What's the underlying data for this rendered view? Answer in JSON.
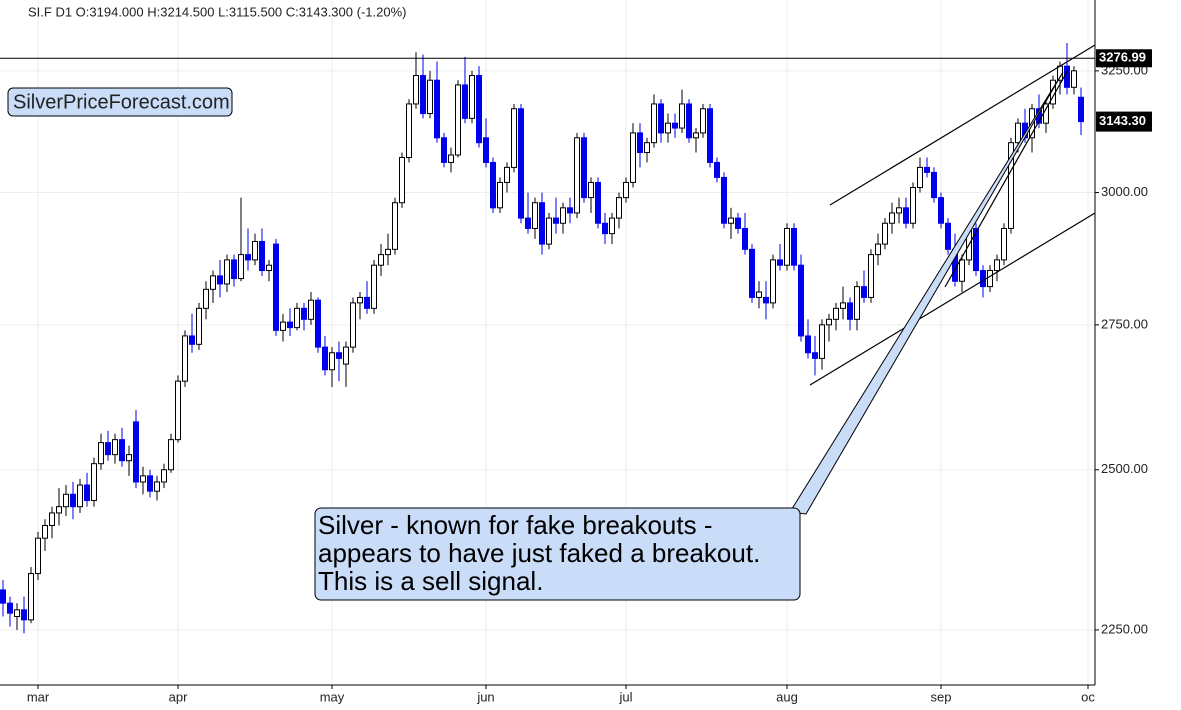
{
  "chart_data": {
    "type": "candlestick",
    "title": "SI.F  D1  O:3194.000  H:3214.500  L:3115.500  C:3143.300  (-1.20%)",
    "watermark": "SilverPriceForecast.com",
    "annotation": [
      "Silver - known for fake breakouts -",
      "appears to have just faked a breakout.",
      "This is a sell signal."
    ],
    "log_scale": true,
    "grid": true,
    "up_color": "#ffffff",
    "down_color": "#0000ee",
    "xlim": [
      -0.43,
      156
    ],
    "xticks": [
      {
        "value": 5,
        "label": "mar"
      },
      {
        "value": 25,
        "label": "apr"
      },
      {
        "value": 47,
        "label": "may"
      },
      {
        "value": 69,
        "label": "jun"
      },
      {
        "value": 89,
        "label": "jul"
      },
      {
        "value": 112,
        "label": "aug"
      },
      {
        "value": 134,
        "label": "sep"
      },
      {
        "value": 155,
        "label": "oc"
      }
    ],
    "ylim": [
      2170,
      3405
    ],
    "yticks": [
      {
        "value": 2250,
        "label": "2250.00"
      },
      {
        "value": 2500,
        "label": "2500.00"
      },
      {
        "value": 2750,
        "label": "2750.00"
      },
      {
        "value": 3000,
        "label": "3000.00"
      },
      {
        "value": 3250,
        "label": "3250.00"
      }
    ],
    "price_line": {
      "value": 3276.99,
      "label": "3276.99"
    },
    "last_price": {
      "value": 3143.3,
      "label": "3143.30"
    },
    "values": [
      [
        2310,
        2325,
        2270,
        2290
      ],
      [
        2290,
        2300,
        2255,
        2275
      ],
      [
        2270,
        2290,
        2250,
        2280
      ],
      [
        2280,
        2300,
        2245,
        2265
      ],
      [
        2265,
        2345,
        2260,
        2335
      ],
      [
        2335,
        2400,
        2325,
        2390
      ],
      [
        2390,
        2420,
        2370,
        2410
      ],
      [
        2410,
        2440,
        2390,
        2430
      ],
      [
        2430,
        2470,
        2410,
        2440
      ],
      [
        2440,
        2475,
        2425,
        2460
      ],
      [
        2460,
        2480,
        2420,
        2440
      ],
      [
        2440,
        2485,
        2430,
        2475
      ],
      [
        2475,
        2495,
        2440,
        2450
      ],
      [
        2450,
        2520,
        2440,
        2510
      ],
      [
        2510,
        2560,
        2500,
        2545
      ],
      [
        2545,
        2565,
        2515,
        2525
      ],
      [
        2525,
        2560,
        2510,
        2550
      ],
      [
        2550,
        2570,
        2505,
        2515
      ],
      [
        2515,
        2540,
        2490,
        2525
      ],
      [
        2580,
        2600,
        2470,
        2480
      ],
      [
        2480,
        2505,
        2460,
        2490
      ],
      [
        2490,
        2500,
        2455,
        2465
      ],
      [
        2465,
        2490,
        2450,
        2480
      ],
      [
        2480,
        2510,
        2470,
        2500
      ],
      [
        2500,
        2560,
        2495,
        2550
      ],
      [
        2550,
        2660,
        2545,
        2650
      ],
      [
        2650,
        2740,
        2640,
        2730
      ],
      [
        2730,
        2770,
        2700,
        2715
      ],
      [
        2715,
        2790,
        2705,
        2780
      ],
      [
        2780,
        2830,
        2760,
        2815
      ],
      [
        2815,
        2850,
        2790,
        2840
      ],
      [
        2840,
        2870,
        2800,
        2825
      ],
      [
        2825,
        2880,
        2810,
        2870
      ],
      [
        2870,
        2880,
        2820,
        2835
      ],
      [
        2835,
        2990,
        2830,
        2880
      ],
      [
        2880,
        2930,
        2850,
        2870
      ],
      [
        2870,
        2920,
        2860,
        2905
      ],
      [
        2905,
        2930,
        2840,
        2850
      ],
      [
        2850,
        2870,
        2830,
        2860
      ],
      [
        2900,
        2910,
        2730,
        2740
      ],
      [
        2740,
        2770,
        2720,
        2755
      ],
      [
        2755,
        2780,
        2730,
        2745
      ],
      [
        2745,
        2790,
        2740,
        2780
      ],
      [
        2780,
        2790,
        2740,
        2760
      ],
      [
        2760,
        2810,
        2750,
        2795
      ],
      [
        2795,
        2800,
        2700,
        2710
      ],
      [
        2710,
        2730,
        2660,
        2670
      ],
      [
        2670,
        2710,
        2640,
        2700
      ],
      [
        2700,
        2720,
        2650,
        2690
      ],
      [
        2680,
        2720,
        2640,
        2710
      ],
      [
        2710,
        2800,
        2700,
        2790
      ],
      [
        2790,
        2810,
        2760,
        2800
      ],
      [
        2800,
        2830,
        2770,
        2780
      ],
      [
        2780,
        2870,
        2770,
        2860
      ],
      [
        2860,
        2900,
        2840,
        2880
      ],
      [
        2880,
        2920,
        2860,
        2890
      ],
      [
        2890,
        2990,
        2880,
        2980
      ],
      [
        2980,
        3080,
        2970,
        3070
      ],
      [
        3070,
        3190,
        3060,
        3180
      ],
      [
        3180,
        3290,
        3170,
        3240
      ],
      [
        3240,
        3285,
        3150,
        3160
      ],
      [
        3160,
        3250,
        3150,
        3230
      ],
      [
        3230,
        3270,
        3100,
        3110
      ],
      [
        3110,
        3120,
        3050,
        3060
      ],
      [
        3060,
        3090,
        3040,
        3075
      ],
      [
        3075,
        3230,
        3070,
        3220
      ],
      [
        3220,
        3280,
        3140,
        3150
      ],
      [
        3150,
        3250,
        3140,
        3240
      ],
      [
        3240,
        3260,
        3090,
        3100
      ],
      [
        3110,
        3150,
        3050,
        3060
      ],
      [
        3060,
        3070,
        2960,
        2970
      ],
      [
        2970,
        3030,
        2960,
        3020
      ],
      [
        3020,
        3060,
        3000,
        3050
      ],
      [
        3050,
        3180,
        3040,
        3170
      ],
      [
        3170,
        3180,
        2940,
        2950
      ],
      [
        2950,
        3000,
        2920,
        2930
      ],
      [
        2930,
        2990,
        2910,
        2980
      ],
      [
        2980,
        3000,
        2880,
        2900
      ],
      [
        2900,
        2960,
        2890,
        2950
      ],
      [
        2950,
        2990,
        2920,
        2940
      ],
      [
        2940,
        2980,
        2920,
        2970
      ],
      [
        2970,
        2990,
        2940,
        2960
      ],
      [
        2960,
        3120,
        2950,
        3110
      ],
      [
        3110,
        3120,
        2980,
        2990
      ],
      [
        2990,
        3030,
        2960,
        3020
      ],
      [
        3020,
        3030,
        2930,
        2940
      ],
      [
        2940,
        2960,
        2900,
        2920
      ],
      [
        2920,
        2960,
        2900,
        2950
      ],
      [
        2950,
        3000,
        2930,
        2990
      ],
      [
        2990,
        3030,
        2980,
        3020
      ],
      [
        3020,
        3140,
        3010,
        3120
      ],
      [
        3120,
        3140,
        3050,
        3080
      ],
      [
        3080,
        3110,
        3060,
        3100
      ],
      [
        3100,
        3200,
        3090,
        3180
      ],
      [
        3180,
        3190,
        3100,
        3120
      ],
      [
        3120,
        3160,
        3100,
        3140
      ],
      [
        3140,
        3160,
        3110,
        3130
      ],
      [
        3130,
        3210,
        3120,
        3180
      ],
      [
        3180,
        3190,
        3100,
        3110
      ],
      [
        3110,
        3130,
        3080,
        3120
      ],
      [
        3120,
        3180,
        3110,
        3170
      ],
      [
        3170,
        3180,
        3050,
        3060
      ],
      [
        3060,
        3070,
        3020,
        3030
      ],
      [
        3030,
        3040,
        2930,
        2940
      ],
      [
        2940,
        2970,
        2910,
        2950
      ],
      [
        2950,
        2960,
        2920,
        2930
      ],
      [
        2930,
        2960,
        2880,
        2890
      ],
      [
        2890,
        2900,
        2790,
        2800
      ],
      [
        2800,
        2830,
        2780,
        2810
      ],
      [
        2800,
        2830,
        2760,
        2790
      ],
      [
        2790,
        2880,
        2780,
        2870
      ],
      [
        2870,
        2900,
        2850,
        2860
      ],
      [
        2860,
        2940,
        2850,
        2930
      ],
      [
        2930,
        2940,
        2850,
        2860
      ],
      [
        2860,
        2880,
        2720,
        2730
      ],
      [
        2730,
        2760,
        2690,
        2700
      ],
      [
        2700,
        2730,
        2660,
        2690
      ],
      [
        2690,
        2760,
        2670,
        2750
      ],
      [
        2750,
        2770,
        2720,
        2760
      ],
      [
        2760,
        2790,
        2740,
        2780
      ],
      [
        2780,
        2820,
        2760,
        2790
      ],
      [
        2790,
        2800,
        2740,
        2760
      ],
      [
        2760,
        2830,
        2740,
        2820
      ],
      [
        2820,
        2850,
        2790,
        2800
      ],
      [
        2800,
        2890,
        2790,
        2880
      ],
      [
        2880,
        2920,
        2860,
        2900
      ],
      [
        2900,
        2950,
        2890,
        2940
      ],
      [
        2940,
        2980,
        2920,
        2960
      ],
      [
        2960,
        2990,
        2940,
        2970
      ],
      [
        2970,
        2990,
        2930,
        2940
      ],
      [
        2940,
        3020,
        2930,
        3010
      ],
      [
        3010,
        3070,
        3000,
        3050
      ],
      [
        3050,
        3070,
        3030,
        3040
      ],
      [
        3040,
        3050,
        2980,
        2990
      ],
      [
        2990,
        3000,
        2930,
        2940
      ],
      [
        2940,
        2950,
        2880,
        2890
      ],
      [
        2890,
        2920,
        2820,
        2830
      ],
      [
        2830,
        2880,
        2810,
        2870
      ],
      [
        2870,
        2940,
        2860,
        2930
      ],
      [
        2930,
        2940,
        2840,
        2850
      ],
      [
        2850,
        2860,
        2800,
        2820
      ],
      [
        2820,
        2860,
        2810,
        2850
      ],
      [
        2850,
        2880,
        2830,
        2870
      ],
      [
        2870,
        2940,
        2860,
        2930
      ],
      [
        2930,
        3110,
        2920,
        3100
      ],
      [
        3100,
        3150,
        3080,
        3140
      ],
      [
        3140,
        3170,
        3100,
        3110
      ],
      [
        3110,
        3180,
        3080,
        3170
      ],
      [
        3170,
        3200,
        3130,
        3140
      ],
      [
        3140,
        3190,
        3120,
        3180
      ],
      [
        3180,
        3240,
        3170,
        3230
      ],
      [
        3230,
        3270,
        3200,
        3260
      ],
      [
        3260,
        3310,
        3200,
        3215
      ],
      [
        3215,
        3260,
        3200,
        3250
      ],
      [
        3194,
        3214.5,
        3115.5,
        3143.3
      ]
    ]
  }
}
